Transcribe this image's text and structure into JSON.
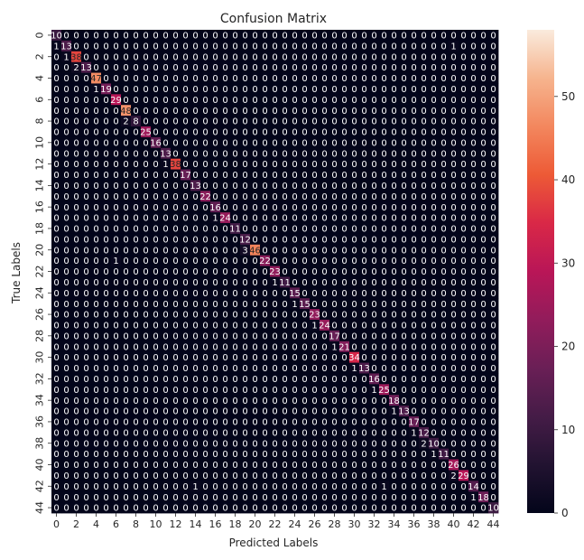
{
  "chart_data": {
    "type": "heatmap",
    "title": "Confusion Matrix",
    "xlabel": "Predicted Labels",
    "ylabel": "True Labels",
    "size": 45,
    "x_tick_labels": [
      "0",
      "2",
      "4",
      "6",
      "8",
      "10",
      "12",
      "14",
      "16",
      "18",
      "20",
      "22",
      "24",
      "26",
      "28",
      "30",
      "32",
      "34",
      "36",
      "38",
      "40",
      "42",
      "44"
    ],
    "y_tick_labels": [
      "0",
      "2",
      "4",
      "6",
      "8",
      "10",
      "12",
      "14",
      "16",
      "18",
      "20",
      "22",
      "24",
      "26",
      "28",
      "30",
      "32",
      "34",
      "36",
      "38",
      "40",
      "42",
      "44"
    ],
    "colorbar": {
      "min": 0,
      "max": 58,
      "ticks": [
        0,
        10,
        20,
        30,
        40,
        50
      ],
      "colormap": "rocket"
    },
    "diagonal": [
      10,
      13,
      38,
      13,
      47,
      19,
      29,
      48,
      8,
      25,
      16,
      13,
      38,
      17,
      13,
      22,
      16,
      24,
      11,
      12,
      46,
      22,
      23,
      11,
      15,
      15,
      23,
      24,
      17,
      21,
      34,
      13,
      16,
      25,
      18,
      13,
      17,
      12,
      10,
      11,
      26,
      29,
      14,
      18,
      10
    ],
    "off_diagonal": [
      {
        "row": 1,
        "col": 0,
        "value": 1
      },
      {
        "row": 1,
        "col": 40,
        "value": 1
      },
      {
        "row": 2,
        "col": 1,
        "value": 1
      },
      {
        "row": 3,
        "col": 2,
        "value": 2
      },
      {
        "row": 5,
        "col": 4,
        "value": 1
      },
      {
        "row": 8,
        "col": 7,
        "value": 2
      },
      {
        "row": 12,
        "col": 11,
        "value": 1
      },
      {
        "row": 17,
        "col": 16,
        "value": 1
      },
      {
        "row": 20,
        "col": 19,
        "value": 3
      },
      {
        "row": 21,
        "col": 6,
        "value": 1
      },
      {
        "row": 23,
        "col": 22,
        "value": 1
      },
      {
        "row": 25,
        "col": 24,
        "value": 1
      },
      {
        "row": 27,
        "col": 26,
        "value": 1
      },
      {
        "row": 29,
        "col": 28,
        "value": 1
      },
      {
        "row": 31,
        "col": 30,
        "value": 1
      },
      {
        "row": 33,
        "col": 32,
        "value": 1
      },
      {
        "row": 35,
        "col": 34,
        "value": 1
      },
      {
        "row": 37,
        "col": 36,
        "value": 1
      },
      {
        "row": 38,
        "col": 37,
        "value": 2
      },
      {
        "row": 39,
        "col": 38,
        "value": 1
      },
      {
        "row": 41,
        "col": 40,
        "value": 2
      },
      {
        "row": 42,
        "col": 14,
        "value": 1
      },
      {
        "row": 42,
        "col": 33,
        "value": 1
      },
      {
        "row": 43,
        "col": 42,
        "value": 1
      }
    ]
  }
}
